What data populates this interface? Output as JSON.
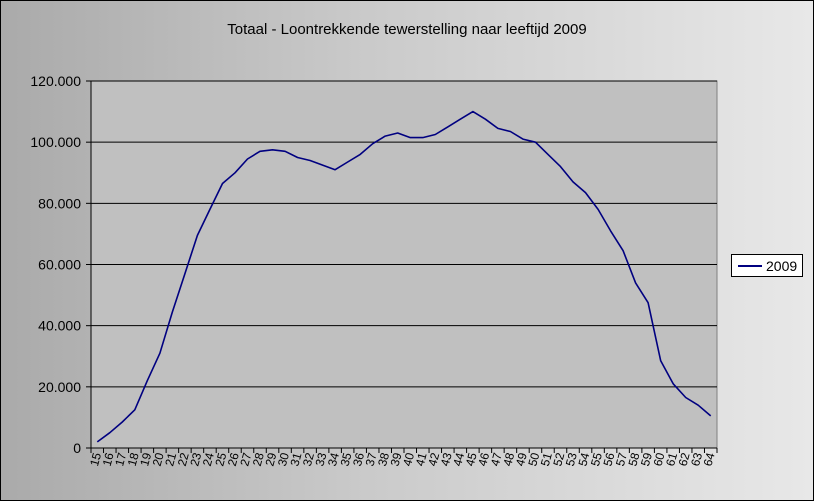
{
  "chart_data": {
    "type": "line",
    "title": "Totaal - Loontrekkende tewerstelling naar leeftijd 2009",
    "xlabel": "",
    "ylabel": "",
    "ylim": [
      0,
      120000
    ],
    "yticks": [
      0,
      20000,
      40000,
      60000,
      80000,
      100000,
      120000
    ],
    "ytick_labels": [
      "0",
      "20.000",
      "40.000",
      "60.000",
      "80.000",
      "100.000",
      "120.000"
    ],
    "grid": "horizontal",
    "legend": "right",
    "x": [
      "15",
      "16",
      "17",
      "18",
      "19",
      "20",
      "21",
      "22",
      "23",
      "24",
      "25",
      "26",
      "27",
      "28",
      "29",
      "30",
      "31",
      "32",
      "33",
      "34",
      "35",
      "36",
      "37",
      "38",
      "39",
      "40",
      "41",
      "42",
      "43",
      "44",
      "45",
      "46",
      "47",
      "48",
      "49",
      "50",
      "51",
      "52",
      "53",
      "54",
      "55",
      "56",
      "57",
      "58",
      "59",
      "60",
      "61",
      "62",
      "63",
      "64"
    ],
    "series": [
      {
        "name": "2009",
        "color": "#000080",
        "values": [
          2000,
          5000,
          8500,
          12500,
          22000,
          31000,
          44500,
          57000,
          69500,
          78000,
          86500,
          90000,
          94500,
          97000,
          97500,
          97000,
          95000,
          94000,
          92500,
          91000,
          93500,
          96000,
          99500,
          102000,
          103000,
          101500,
          101500,
          102500,
          105000,
          107500,
          110000,
          107500,
          104500,
          103500,
          101000,
          100000,
          96000,
          92000,
          87000,
          83500,
          78000,
          71000,
          64500,
          54000,
          47500,
          28500,
          21000,
          16500,
          14000,
          10500
        ]
      }
    ]
  },
  "colors": {
    "plot_bg": "#c0c0c0",
    "grid": "#000000",
    "line": "#000080"
  }
}
